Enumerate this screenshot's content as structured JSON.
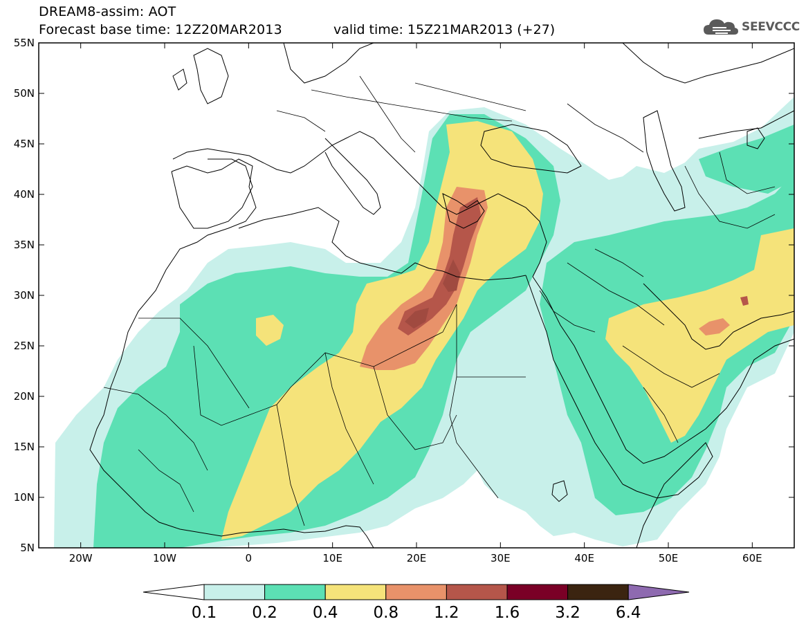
{
  "header": {
    "title": "DREAM8-assim: AOT",
    "base_time": "Forecast base time: 12Z20MAR2013",
    "valid_time": "valid time: 15Z21MAR2013 (+27)"
  },
  "logo": {
    "icon": "cloud-logo-icon",
    "text": "SEEVCCC"
  },
  "map": {
    "lat_labels": [
      "55N",
      "50N",
      "45N",
      "40N",
      "35N",
      "30N",
      "25N",
      "20N",
      "15N",
      "10N",
      "5N"
    ],
    "lon_labels": [
      "20W",
      "10W",
      "0",
      "10E",
      "20E",
      "30E",
      "40E",
      "50E",
      "60E"
    ]
  },
  "legend": {
    "bins": [
      {
        "color": "#c8f0ea"
      },
      {
        "color": "#5ce0b4"
      },
      {
        "color": "#f5e37a"
      },
      {
        "color": "#e8926a"
      },
      {
        "color": "#b5564a"
      },
      {
        "color": "#7a0026"
      },
      {
        "color": "#3b2410"
      }
    ],
    "under_color": "#ffffff",
    "over_color": "#8e6ab0",
    "labels": [
      "0.1",
      "0.2",
      "0.4",
      "0.8",
      "1.2",
      "1.6",
      "3.2",
      "6.4"
    ]
  },
  "colors": {
    "c1": "#c8f0ea",
    "c2": "#5ce0b4",
    "c3": "#f5e37a",
    "c4": "#e8926a",
    "c5": "#b5564a",
    "c6": "#a04a40"
  }
}
